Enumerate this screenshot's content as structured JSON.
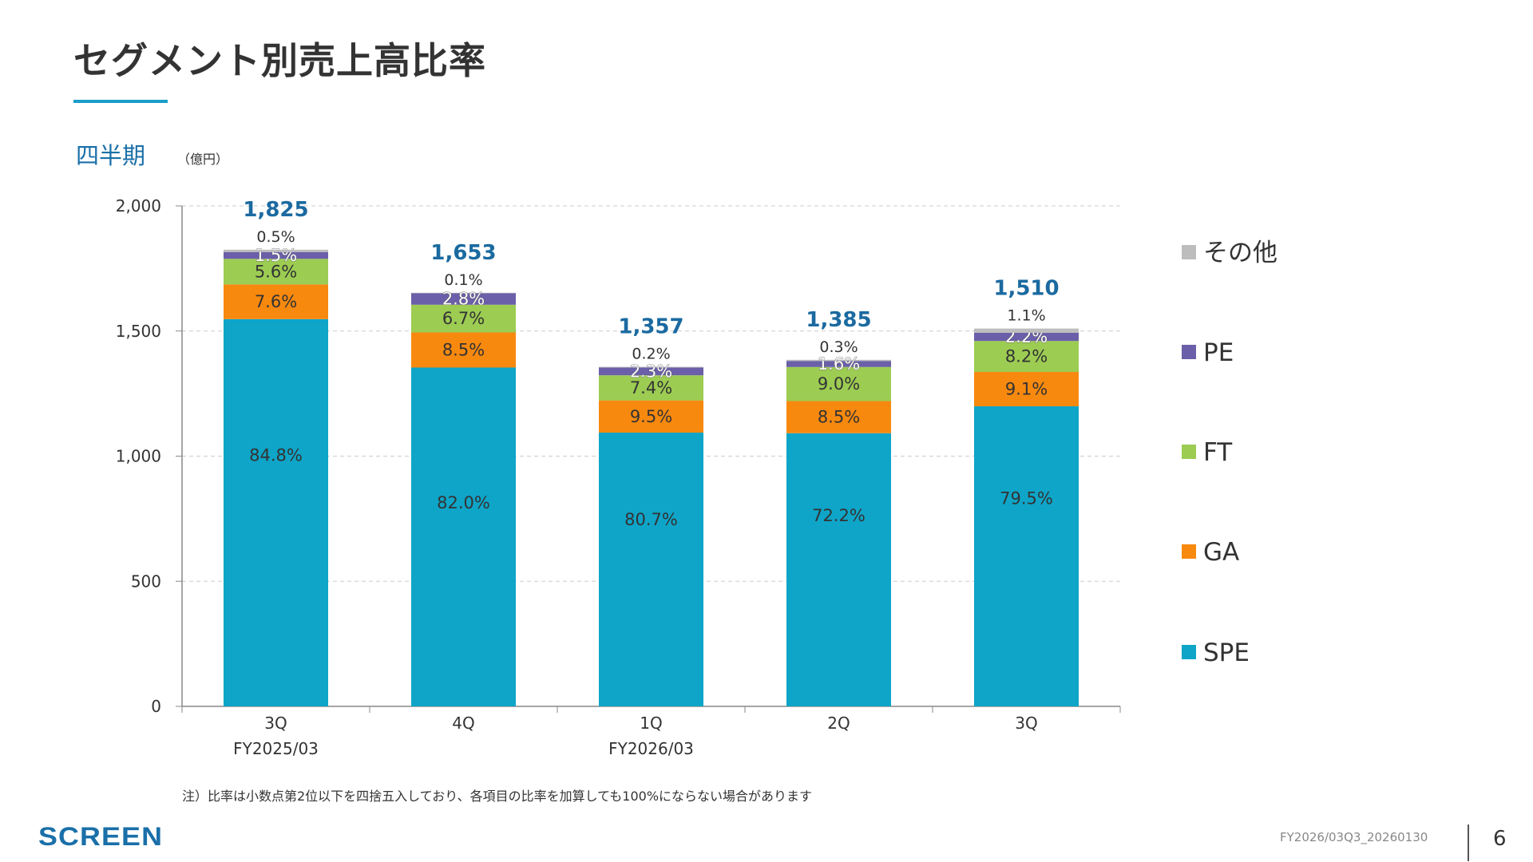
{
  "title": "セグメント別売上高比率",
  "period_label": "四半期",
  "unit_label": "（億円）",
  "note": "注）比率は小数点第2位以下を四捨五入しており、各項目の比率を加算しても100%にならない場合があります",
  "logo": "SCREEN",
  "doc_id": "FY2026/03Q3_20260130",
  "page_number": "6",
  "chart_data": {
    "type": "bar",
    "stacked": true,
    "ylim": [
      0,
      2000
    ],
    "yticks": [
      0,
      500,
      1000,
      1500,
      2000
    ],
    "ytick_labels": [
      "0",
      "500",
      "1,000",
      "1,500",
      "2,000"
    ],
    "grid": true,
    "legend_position": "right",
    "categories": [
      "3Q",
      "4Q",
      "1Q",
      "2Q",
      "3Q"
    ],
    "category_groups": [
      "FY2025/03",
      "",
      "FY2026/03",
      "",
      ""
    ],
    "totals": [
      1825,
      1653,
      1357,
      1385,
      1510
    ],
    "total_labels": [
      "1,825",
      "1,653",
      "1,357",
      "1,385",
      "1,510"
    ],
    "series": [
      {
        "name": "SPE",
        "color": "#0ea5c8",
        "percent": [
          84.8,
          82.0,
          80.7,
          72.2,
          79.5
        ],
        "labels": [
          "84.8%",
          "82.0%",
          "80.7%",
          "72.2%",
          "79.5%"
        ]
      },
      {
        "name": "GA",
        "color": "#f7890f",
        "percent": [
          7.6,
          8.5,
          9.5,
          8.5,
          9.1
        ],
        "labels": [
          "7.6%",
          "8.5%",
          "9.5%",
          "8.5%",
          "9.1%"
        ]
      },
      {
        "name": "FT",
        "color": "#9ccc52",
        "percent": [
          5.6,
          6.7,
          7.4,
          9.0,
          8.2
        ],
        "labels": [
          "5.6%",
          "6.7%",
          "7.4%",
          "9.0%",
          "8.2%"
        ]
      },
      {
        "name": "PE",
        "color": "#6a5fa8",
        "percent": [
          1.5,
          2.8,
          2.3,
          1.6,
          2.2
        ],
        "labels": [
          "1.5%",
          "2.8%",
          "2.3%",
          "1.6%",
          "2.2%"
        ]
      },
      {
        "name": "その他",
        "color": "#bdbdbd",
        "percent": [
          0.5,
          0.1,
          0.2,
          0.3,
          1.1
        ],
        "labels": [
          "0.5%",
          "0.1%",
          "0.2%",
          "0.3%",
          "1.1%"
        ]
      }
    ],
    "colors": {
      "total_label": "#1b6aa0",
      "axis": "#888888",
      "grid": "#cccccc"
    }
  }
}
